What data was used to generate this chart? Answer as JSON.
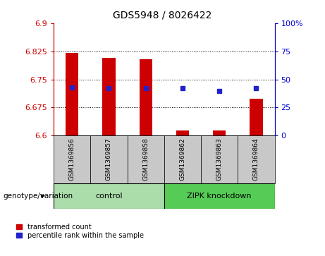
{
  "title": "GDS5948 / 8026422",
  "categories": [
    "GSM1369856",
    "GSM1369857",
    "GSM1369858",
    "GSM1369862",
    "GSM1369863",
    "GSM1369864"
  ],
  "bar_bottoms": [
    6.6,
    6.6,
    6.6,
    6.6,
    6.6,
    6.6
  ],
  "bar_tops": [
    6.82,
    6.808,
    6.803,
    6.614,
    6.614,
    6.698
  ],
  "blue_y": [
    6.728,
    6.727,
    6.727,
    6.726,
    6.719,
    6.726
  ],
  "ylim_min": 6.6,
  "ylim_max": 6.9,
  "yticks_left": [
    6.6,
    6.675,
    6.75,
    6.825,
    6.9
  ],
  "yticks_right": [
    0,
    25,
    50,
    75,
    100
  ],
  "bar_color": "#cc0000",
  "blue_color": "#2222cc",
  "bar_width": 0.35,
  "control_label": "control",
  "knockdown_label": "ZIPK knockdown",
  "genotype_label": "genotype/variation",
  "legend_red": "transformed count",
  "legend_blue": "percentile rank within the sample",
  "control_indices": [
    0,
    1,
    2
  ],
  "knockdown_indices": [
    3,
    4,
    5
  ],
  "control_bg": "#aaddaa",
  "knockdown_bg": "#55cc55",
  "ticklabel_bg": "#c8c8c8",
  "right_axis_color": "#0000cc",
  "left_axis_color": "#cc0000",
  "title_fontsize": 10,
  "tick_fontsize": 8,
  "label_fontsize": 7.5,
  "gsm_fontsize": 6.5,
  "geno_fontsize": 8
}
